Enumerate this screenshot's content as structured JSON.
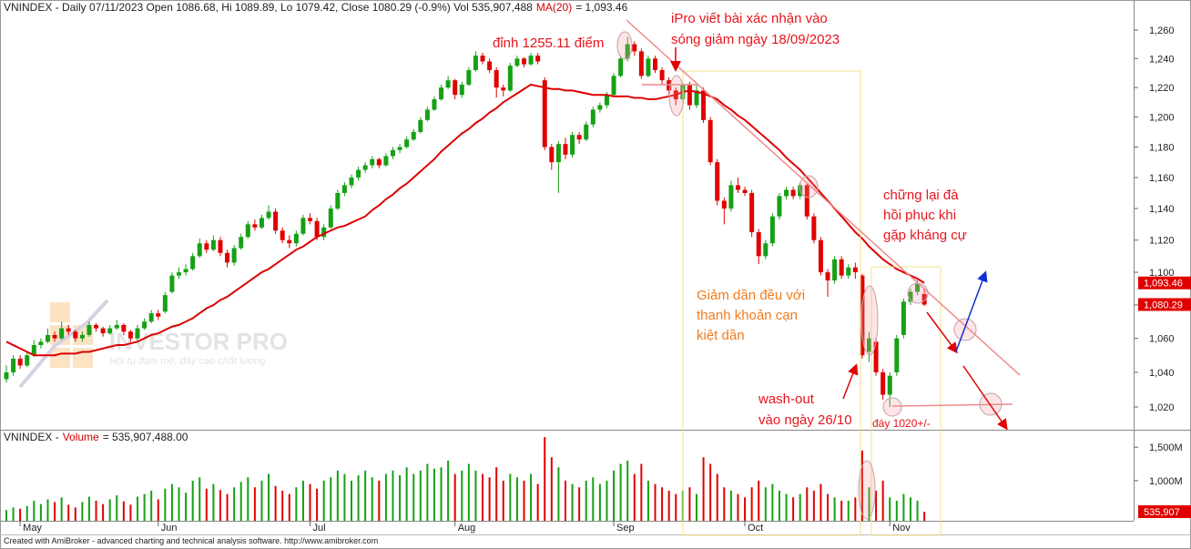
{
  "chart_data": [
    {
      "type": "candlestick",
      "title": "VNINDEX - Daily 07/11/2023 Open 1086.68, Hi 1089.89, Lo 1079.42, Close 1080.29 (-0.9%) Vol 535,907,488",
      "ma_text": "= 1,093.46",
      "up_color": "#16a016",
      "down_color": "#e00000",
      "log_scale": true,
      "ylim": [
        1008.1,
        1271.6
      ],
      "yticks": [
        {
          "value": 1020,
          "label": "1,020"
        },
        {
          "value": 1040,
          "label": "1,040"
        },
        {
          "value": 1060,
          "label": "1,060"
        },
        {
          "value": 1080,
          "label": "1,080"
        },
        {
          "value": 1100,
          "label": "1,100"
        },
        {
          "value": 1120,
          "label": "1,120"
        },
        {
          "value": 1140,
          "label": "1,140"
        },
        {
          "value": 1160,
          "label": "1,160"
        },
        {
          "value": 1180,
          "label": "1,180"
        },
        {
          "value": 1200,
          "label": "1,200"
        },
        {
          "value": 1220,
          "label": "1,220"
        },
        {
          "value": 1240,
          "label": "1,240"
        },
        {
          "value": 1260,
          "label": "1,260"
        }
      ],
      "xticks": [
        {
          "value": 2,
          "label": "May"
        },
        {
          "value": 22,
          "label": "Jun"
        },
        {
          "value": 44,
          "label": "Jul"
        },
        {
          "value": 65,
          "label": "Aug"
        },
        {
          "value": 88,
          "label": "Sep"
        },
        {
          "value": 107,
          "label": "Oct"
        },
        {
          "value": 128,
          "label": "Nov"
        }
      ],
      "ohlc": [
        [
          1036,
          1044,
          1034,
          1040
        ],
        [
          1040,
          1050,
          1038,
          1048
        ],
        [
          1048,
          1050,
          1042,
          1044
        ],
        [
          1044,
          1052,
          1043,
          1050
        ],
        [
          1050,
          1059,
          1049,
          1056
        ],
        [
          1056,
          1060,
          1054,
          1058
        ],
        [
          1058,
          1066,
          1057,
          1062
        ],
        [
          1062,
          1064,
          1058,
          1060
        ],
        [
          1060,
          1070,
          1059,
          1066
        ],
        [
          1066,
          1068,
          1062,
          1064
        ],
        [
          1064,
          1065,
          1058,
          1060
        ],
        [
          1060,
          1064,
          1058,
          1062
        ],
        [
          1062,
          1070,
          1061,
          1068
        ],
        [
          1068,
          1069,
          1064,
          1066
        ],
        [
          1066,
          1067,
          1061,
          1063
        ],
        [
          1063,
          1068,
          1062,
          1066
        ],
        [
          1066,
          1071,
          1065,
          1068
        ],
        [
          1068,
          1069,
          1062,
          1064
        ],
        [
          1064,
          1065,
          1058,
          1060
        ],
        [
          1060,
          1068,
          1059,
          1066
        ],
        [
          1066,
          1072,
          1065,
          1070
        ],
        [
          1070,
          1077,
          1069,
          1075
        ],
        [
          1075,
          1077,
          1071,
          1073
        ],
        [
          1076,
          1088,
          1075,
          1086
        ],
        [
          1088,
          1100,
          1087,
          1098
        ],
        [
          1098,
          1103,
          1096,
          1100
        ],
        [
          1100,
          1105,
          1098,
          1102
        ],
        [
          1102,
          1112,
          1101,
          1110
        ],
        [
          1110,
          1121,
          1109,
          1118
        ],
        [
          1118,
          1120,
          1112,
          1114
        ],
        [
          1114,
          1123,
          1113,
          1120
        ],
        [
          1120,
          1122,
          1110,
          1112
        ],
        [
          1112,
          1114,
          1103,
          1106
        ],
        [
          1106,
          1117,
          1104,
          1115
        ],
        [
          1115,
          1124,
          1114,
          1122
        ],
        [
          1122,
          1132,
          1121,
          1130
        ],
        [
          1130,
          1133,
          1126,
          1128
        ],
        [
          1128,
          1136,
          1127,
          1134
        ],
        [
          1134,
          1142,
          1133,
          1138
        ],
        [
          1138,
          1140,
          1124,
          1126
        ],
        [
          1126,
          1128,
          1118,
          1120
        ],
        [
          1120,
          1123,
          1115,
          1118
        ],
        [
          1118,
          1126,
          1116,
          1124
        ],
        [
          1124,
          1136,
          1123,
          1134
        ],
        [
          1134,
          1137,
          1130,
          1132
        ],
        [
          1132,
          1134,
          1120,
          1122
        ],
        [
          1122,
          1130,
          1120,
          1128
        ],
        [
          1128,
          1142,
          1127,
          1140
        ],
        [
          1140,
          1152,
          1139,
          1150
        ],
        [
          1150,
          1157,
          1148,
          1155
        ],
        [
          1155,
          1162,
          1153,
          1160
        ],
        [
          1160,
          1167,
          1158,
          1165
        ],
        [
          1165,
          1170,
          1163,
          1168
        ],
        [
          1168,
          1174,
          1166,
          1172
        ],
        [
          1172,
          1173,
          1166,
          1168
        ],
        [
          1168,
          1176,
          1167,
          1174
        ],
        [
          1174,
          1180,
          1172,
          1178
        ],
        [
          1178,
          1182,
          1176,
          1180
        ],
        [
          1180,
          1187,
          1179,
          1185
        ],
        [
          1185,
          1192,
          1184,
          1190
        ],
        [
          1190,
          1200,
          1189,
          1198
        ],
        [
          1198,
          1207,
          1197,
          1205
        ],
        [
          1205,
          1214,
          1204,
          1212
        ],
        [
          1212,
          1222,
          1211,
          1220
        ],
        [
          1220,
          1228,
          1219,
          1225
        ],
        [
          1225,
          1226,
          1212,
          1215
        ],
        [
          1215,
          1224,
          1213,
          1222
        ],
        [
          1222,
          1234,
          1221,
          1232
        ],
        [
          1232,
          1245,
          1231,
          1242
        ],
        [
          1242,
          1244,
          1236,
          1238
        ],
        [
          1238,
          1240,
          1230,
          1232
        ],
        [
          1232,
          1234,
          1213,
          1220
        ],
        [
          1220,
          1222,
          1214,
          1218
        ],
        [
          1218,
          1237,
          1217,
          1235
        ],
        [
          1235,
          1242,
          1234,
          1240
        ],
        [
          1240,
          1241,
          1234,
          1236
        ],
        [
          1236,
          1244,
          1235,
          1242
        ],
        [
          1242,
          1244,
          1236,
          1238
        ],
        [
          1225,
          1227,
          1178,
          1180
        ],
        [
          1180,
          1182,
          1165,
          1170
        ],
        [
          1170,
          1184,
          1150,
          1182
        ],
        [
          1182,
          1186,
          1172,
          1175
        ],
        [
          1175,
          1190,
          1173,
          1188
        ],
        [
          1188,
          1190,
          1182,
          1185
        ],
        [
          1185,
          1197,
          1184,
          1195
        ],
        [
          1195,
          1207,
          1193,
          1205
        ],
        [
          1205,
          1210,
          1203,
          1208
        ],
        [
          1208,
          1217,
          1206,
          1215
        ],
        [
          1215,
          1230,
          1214,
          1228
        ],
        [
          1228,
          1242,
          1227,
          1240
        ],
        [
          1240,
          1255.11,
          1238,
          1250
        ],
        [
          1250,
          1252,
          1242,
          1245
        ],
        [
          1245,
          1247,
          1226,
          1228
        ],
        [
          1228,
          1242,
          1227,
          1240
        ],
        [
          1240,
          1242,
          1230,
          1232
        ],
        [
          1232,
          1234,
          1222,
          1225
        ],
        [
          1225,
          1227,
          1215,
          1218
        ],
        [
          1218,
          1220,
          1208,
          1212
        ],
        [
          1212,
          1224,
          1210,
          1222
        ],
        [
          1222,
          1224,
          1205,
          1208
        ],
        [
          1208,
          1222,
          1206,
          1218
        ],
        [
          1218,
          1220,
          1196,
          1198
        ],
        [
          1198,
          1200,
          1168,
          1170
        ],
        [
          1170,
          1172,
          1142,
          1145
        ],
        [
          1145,
          1147,
          1130,
          1140
        ],
        [
          1140,
          1158,
          1138,
          1155
        ],
        [
          1155,
          1160,
          1150,
          1152
        ],
        [
          1152,
          1154,
          1148,
          1150
        ],
        [
          1150,
          1152,
          1122,
          1125
        ],
        [
          1125,
          1127,
          1105,
          1110
        ],
        [
          1110,
          1120,
          1108,
          1118
        ],
        [
          1118,
          1137,
          1116,
          1135
        ],
        [
          1135,
          1150,
          1133,
          1148
        ],
        [
          1148,
          1154,
          1146,
          1152
        ],
        [
          1152,
          1154,
          1146,
          1148
        ],
        [
          1148,
          1157,
          1146,
          1155
        ],
        [
          1155,
          1156,
          1133,
          1135
        ],
        [
          1135,
          1137,
          1118,
          1120
        ],
        [
          1120,
          1122,
          1098,
          1100
        ],
        [
          1100,
          1102,
          1085,
          1095
        ],
        [
          1095,
          1110,
          1093,
          1108
        ],
        [
          1108,
          1110,
          1096,
          1098
        ],
        [
          1098,
          1105,
          1096,
          1103
        ],
        [
          1103,
          1106,
          1096,
          1100
        ],
        [
          1098,
          1099,
          1048,
          1050
        ],
        [
          1052,
          1064,
          1046,
          1060
        ],
        [
          1058,
          1060,
          1038,
          1040
        ],
        [
          1040,
          1042,
          1024,
          1027
        ],
        [
          1027,
          1040,
          1020,
          1038
        ],
        [
          1040,
          1062,
          1038,
          1060
        ],
        [
          1062,
          1084,
          1060,
          1082
        ],
        [
          1082,
          1090,
          1080,
          1088
        ],
        [
          1088,
          1095,
          1086,
          1093
        ],
        [
          1086.68,
          1089.89,
          1079.42,
          1080.29
        ]
      ],
      "ma": {
        "name": "MA(20)",
        "color": "#dd0000",
        "values": [
          1058,
          1056,
          1054,
          1052,
          1050,
          1050,
          1050,
          1050,
          1051,
          1051,
          1051,
          1052,
          1052,
          1053,
          1054,
          1055,
          1056,
          1056,
          1057,
          1058,
          1060,
          1062,
          1063,
          1065,
          1067,
          1068,
          1070,
          1072,
          1075,
          1078,
          1080,
          1083,
          1085,
          1088,
          1091,
          1094,
          1097,
          1100,
          1102,
          1105,
          1108,
          1111,
          1114,
          1116,
          1119,
          1122,
          1124,
          1126,
          1128,
          1129,
          1131,
          1133,
          1135,
          1139,
          1142,
          1146,
          1149,
          1153,
          1156,
          1160,
          1164,
          1168,
          1172,
          1177,
          1181,
          1185,
          1189,
          1192,
          1196,
          1199,
          1203,
          1206,
          1210,
          1213,
          1216,
          1219,
          1222,
          1221,
          1220,
          1219,
          1219,
          1218,
          1218,
          1217,
          1216,
          1215,
          1215,
          1215,
          1214,
          1214,
          1214,
          1213,
          1213,
          1212,
          1212,
          1213,
          1214,
          1215,
          1217,
          1218,
          1217,
          1216,
          1214,
          1212,
          1208,
          1205,
          1201,
          1198,
          1194,
          1190,
          1186,
          1182,
          1178,
          1173,
          1169,
          1165,
          1160,
          1155,
          1150,
          1145,
          1140,
          1135,
          1130,
          1125,
          1121,
          1116,
          1112,
          1108,
          1105,
          1102,
          1100,
          1098,
          1096,
          1093.46
        ]
      },
      "price_tags": [
        {
          "value": 1093.46,
          "label": "1,093.46"
        },
        {
          "value": 1080.29,
          "label": "1,080.29"
        }
      ],
      "annotations": [
        {
          "text": "đỉnh 1255.11 điểm",
          "color": "#e8141c"
        },
        {
          "text": "iPro viết bài xác nhận vào",
          "color": "#e8141c"
        },
        {
          "text": "sóng giảm ngày 18/09/2023",
          "color": "#e8141c"
        },
        {
          "text": "chững lại đà",
          "color": "#e8141c"
        },
        {
          "text": "hồi phục khi",
          "color": "#e8141c"
        },
        {
          "text": "gặp kháng cự",
          "color": "#e8141c"
        },
        {
          "text": "Giảm dần đều với",
          "color": "#f07c1e"
        },
        {
          "text": "thanh khoản cạn",
          "color": "#f07c1e"
        },
        {
          "text": "kiệt dần",
          "color": "#f07c1e"
        },
        {
          "text": "wash-out",
          "color": "#e8141c"
        },
        {
          "text": "vào ngày 26/10",
          "color": "#e8141c"
        },
        {
          "text": "đáy 1020+/-",
          "color": "#e8141c"
        }
      ],
      "watermark": {
        "title": "INVESTOR PRO",
        "subtitle": "Hội tụ đam mê, đầy cao chất lượng"
      }
    },
    {
      "type": "bar",
      "title_prefix": "VNINDEX -",
      "title_name": "Volume",
      "title_value": "= 535,907,488.00",
      "ylim": [
        400,
        1720
      ],
      "yticks": [
        {
          "value": 1000,
          "label": "1,000M"
        },
        {
          "value": 1500,
          "label": "1,500M"
        }
      ],
      "values": [
        560,
        600,
        580,
        620,
        700,
        650,
        720,
        680,
        750,
        640,
        600,
        680,
        760,
        700,
        650,
        720,
        780,
        690,
        640,
        760,
        800,
        850,
        720,
        880,
        950,
        900,
        820,
        1000,
        1050,
        880,
        950,
        860,
        800,
        900,
        980,
        1050,
        900,
        1000,
        1100,
        920,
        850,
        800,
        900,
        1000,
        950,
        880,
        1000,
        1050,
        1150,
        1100,
        1000,
        1080,
        1150,
        1050,
        1000,
        1100,
        1150,
        1080,
        1200,
        1100,
        1150,
        1250,
        1180,
        1200,
        1300,
        1100,
        1150,
        1250,
        1150,
        1100,
        1050,
        1200,
        1000,
        1100,
        1050,
        1000,
        1100,
        950,
        1650,
        1350,
        1200,
        1000,
        950,
        900,
        1000,
        1050,
        950,
        1000,
        1150,
        1250,
        1300,
        1100,
        1250,
        1000,
        950,
        900,
        850,
        800,
        850,
        900,
        800,
        1350,
        1250,
        1100,
        900,
        850,
        800,
        750,
        900,
        1000,
        900,
        950,
        850,
        800,
        750,
        800,
        900,
        850,
        950,
        800,
        750,
        700,
        700,
        750,
        1450,
        900,
        850,
        1000,
        750,
        700,
        800,
        750,
        700,
        535.907488
      ],
      "price_tag": {
        "value": 535.907488,
        "label": "535,907"
      }
    }
  ],
  "footer": "Created with AmiBroker - advanced charting and technical analysis software. http://www.amibroker.com"
}
